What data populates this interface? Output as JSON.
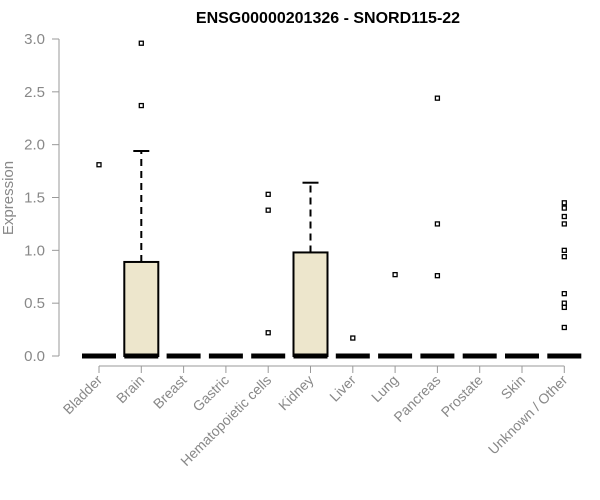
{
  "chart_data": {
    "type": "box",
    "title": "ENSG00000201326 - SNORD115-22",
    "xlabel": "",
    "ylabel": "Expression",
    "ylim": [
      0,
      3.0
    ],
    "yticks": [
      "0.0",
      "0.5",
      "1.0",
      "1.5",
      "2.0",
      "2.5",
      "3.0"
    ],
    "grid": false,
    "box_fill": "#ede6cc",
    "categories": [
      "Bladder",
      "Brain",
      "Breast",
      "Gastric",
      "Hematopoietic cells",
      "Kidney",
      "Liver",
      "Lung",
      "Pancreas",
      "Prostate",
      "Skin",
      "Unknown / Other"
    ],
    "boxes": [
      {
        "q1": 0,
        "median": 0,
        "q3": 0,
        "whisker_low": 0,
        "whisker_high": 0,
        "outliers": [
          1.81
        ]
      },
      {
        "q1": 0,
        "median": 0,
        "q3": 0.89,
        "whisker_low": 0,
        "whisker_high": 1.94,
        "outliers": [
          2.37,
          2.96
        ]
      },
      {
        "q1": 0,
        "median": 0,
        "q3": 0,
        "whisker_low": 0,
        "whisker_high": 0,
        "outliers": []
      },
      {
        "q1": 0,
        "median": 0,
        "q3": 0,
        "whisker_low": 0,
        "whisker_high": 0,
        "outliers": []
      },
      {
        "q1": 0,
        "median": 0,
        "q3": 0,
        "whisker_low": 0,
        "whisker_high": 0,
        "outliers": [
          0.22,
          1.38,
          1.53
        ]
      },
      {
        "q1": 0,
        "median": 0,
        "q3": 0.98,
        "whisker_low": 0,
        "whisker_high": 1.64,
        "outliers": []
      },
      {
        "q1": 0,
        "median": 0,
        "q3": 0,
        "whisker_low": 0,
        "whisker_high": 0,
        "outliers": [
          0.17
        ]
      },
      {
        "q1": 0,
        "median": 0,
        "q3": 0,
        "whisker_low": 0,
        "whisker_high": 0,
        "outliers": [
          0.77
        ]
      },
      {
        "q1": 0,
        "median": 0,
        "q3": 0,
        "whisker_low": 0,
        "whisker_high": 0,
        "outliers": [
          0.76,
          1.25,
          2.44
        ]
      },
      {
        "q1": 0,
        "median": 0,
        "q3": 0,
        "whisker_low": 0,
        "whisker_high": 0,
        "outliers": []
      },
      {
        "q1": 0,
        "median": 0,
        "q3": 0,
        "whisker_low": 0,
        "whisker_high": 0,
        "outliers": []
      },
      {
        "q1": 0,
        "median": 0,
        "q3": 0,
        "whisker_low": 0,
        "whisker_high": 0,
        "outliers": [
          0.27,
          0.46,
          0.5,
          0.59,
          0.94,
          1.0,
          1.25,
          1.32,
          1.4,
          1.45
        ]
      }
    ]
  }
}
